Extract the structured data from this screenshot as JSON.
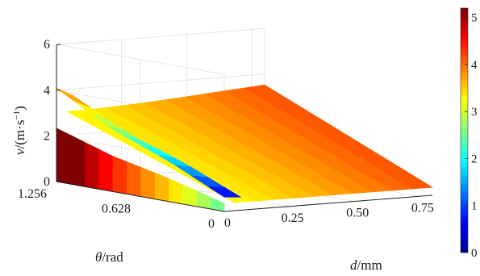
{
  "chart_data": {
    "type": "surface3d",
    "title": "",
    "zlabel": {
      "var": "v",
      "unit": "/(m·s",
      "exp": "−1",
      "close": ")"
    },
    "ylabel": {
      "var": "θ",
      "unit": "/rad"
    },
    "xlabel": {
      "var": "d",
      "unit": "/mm"
    },
    "z_ticks": [
      "0",
      "2",
      "4",
      "6"
    ],
    "theta_ticks": [
      "0",
      "0.628",
      "1.256"
    ],
    "d_ticks": [
      "0",
      "0.25",
      "0.50",
      "0.75"
    ],
    "zlim": [
      0,
      6
    ],
    "theta_range": [
      0,
      1.256
    ],
    "d_range": [
      0,
      0.8
    ],
    "colorbar": {
      "ticks": [
        "0",
        "1",
        "2",
        "3",
        "4",
        "5"
      ],
      "range": [
        0,
        5.2
      ],
      "colormap": "jet"
    },
    "surface": {
      "theta_profile": {
        "theta": [
          0.0,
          0.42,
          0.84,
          1.256
        ],
        "v": [
          0.6,
          1.7,
          2.6,
          3.9
        ]
      },
      "d_profile": {
        "d": [
          0.0,
          0.1,
          0.2,
          0.35,
          0.5,
          0.65,
          0.8
        ],
        "v": [
          3.7,
          3.7,
          3.75,
          3.85,
          4.0,
          4.15,
          4.3
        ]
      },
      "ridge": {
        "d": 0.0,
        "v_max": 4.2
      }
    },
    "grid": true
  }
}
